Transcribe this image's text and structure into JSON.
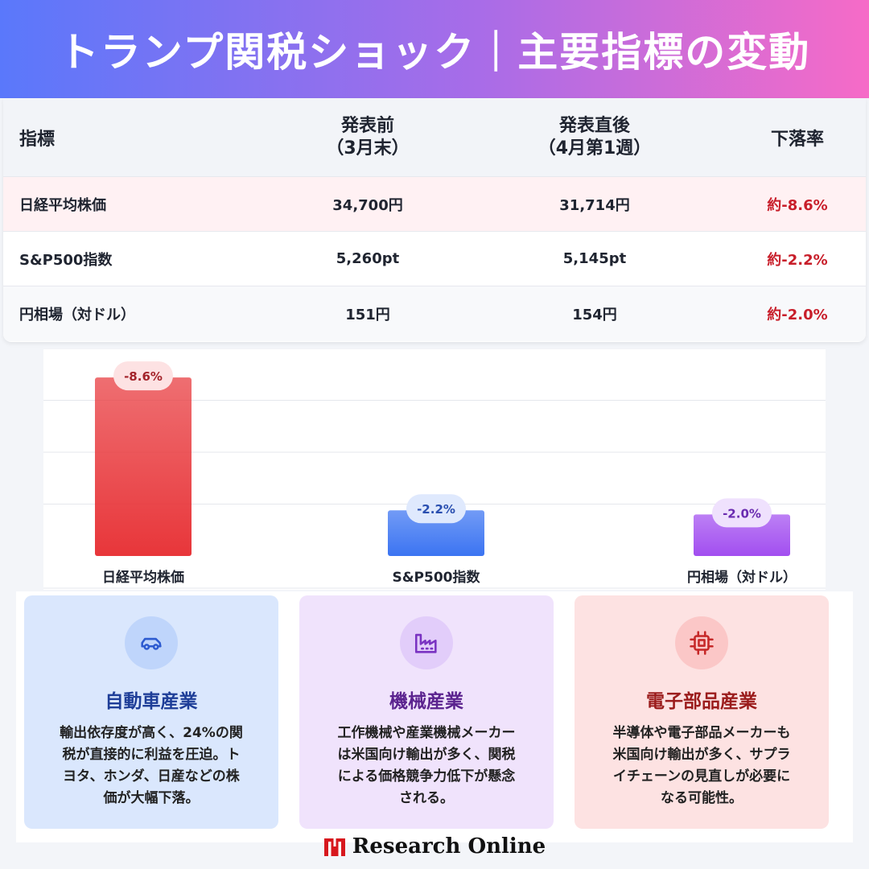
{
  "header": {
    "title": "トランプ関税ショック｜主要指標の変動"
  },
  "table": {
    "headers": {
      "indicator": "指標",
      "before_line1": "発表前",
      "before_line2": "（3月末）",
      "after_line1": "発表直後",
      "after_line2": "（4月第1週）",
      "rate": "下落率"
    },
    "rows": [
      {
        "name": "日経平均株価",
        "before": "34,700円",
        "after": "31,714円",
        "rate": "約-8.6%"
      },
      {
        "name": "S&P500指数",
        "before": "5,260pt",
        "after": "5,145pt",
        "rate": "約-2.2%"
      },
      {
        "name": "円相場（対ドル）",
        "before": "151円",
        "after": "154円",
        "rate": "約-2.0%"
      }
    ]
  },
  "chart_data": {
    "type": "bar",
    "categories": [
      "日経平均株価",
      "S&P500指数",
      "円相場（対ドル）"
    ],
    "values": [
      -8.6,
      -2.2,
      -2.0
    ],
    "data_labels": [
      "-8.6%",
      "-2.2%",
      "-2.0%"
    ],
    "ylim": [
      0,
      10
    ],
    "grid": true,
    "colors": [
      "#e8363a",
      "#3b74f2",
      "#a24ef0"
    ],
    "label_colors": [
      "#a3232a",
      "#2a4fb0",
      "#6a2bb0"
    ],
    "label_bgs": [
      "#fde2e3",
      "#dfe9fd",
      "#efe1fd"
    ]
  },
  "cards": [
    {
      "icon": "car-icon",
      "title": "自動車産業",
      "lines": [
        "輸出依存度が高く、24%の関",
        "税が直接的に利益を圧迫。ト",
        "ヨタ、ホンダ、日産などの株",
        "価が大幅下落。"
      ],
      "accent": "#1e3e98"
    },
    {
      "icon": "factory-icon",
      "title": "機械産業",
      "lines": [
        "工作機械や産業機械メーカー",
        "は米国向け輸出が多く、関税",
        "による価格競争力低下が懸念",
        "される。"
      ],
      "accent": "#5b238f"
    },
    {
      "icon": "chip-icon",
      "title": "電子部品産業",
      "lines": [
        "半導体や電子部品メーカーも",
        "米国向け輸出が多く、サプラ",
        "イチェーンの見直しが必要に",
        "なる可能性。"
      ],
      "accent": "#9b1c1c"
    }
  ],
  "footer": {
    "logo_text": "Research Online"
  }
}
